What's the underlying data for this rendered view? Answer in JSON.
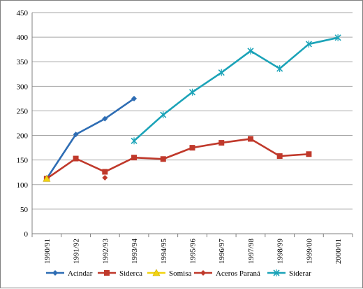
{
  "chart_data": {
    "type": "line",
    "title": "",
    "xlabel": "",
    "ylabel": "",
    "ylim": [
      0,
      450
    ],
    "yticks": [
      0,
      50,
      100,
      150,
      200,
      250,
      300,
      350,
      400,
      450
    ],
    "grid": "horizontal",
    "legend_position": "bottom",
    "categories": [
      "1990/91",
      "1991/92",
      "1992/93",
      "1993/94",
      "1994/95",
      "1995/96",
      "1996/97",
      "1997/98",
      "1998/99",
      "1999/00",
      "2000/01"
    ],
    "series": [
      {
        "name": "Acindar",
        "color": "#2E6DB4",
        "marker": "diamond",
        "values": [
          112,
          202,
          234,
          275,
          null,
          null,
          null,
          null,
          null,
          null,
          null
        ]
      },
      {
        "name": "Siderca",
        "color": "#C0392B",
        "marker": "square",
        "values": [
          112,
          153,
          126,
          155,
          152,
          175,
          185,
          193,
          158,
          162,
          null
        ]
      },
      {
        "name": "Somisa",
        "color": "#F2D30F",
        "marker": "triangle",
        "values": [
          112,
          null,
          null,
          null,
          null,
          null,
          null,
          null,
          null,
          null,
          null
        ]
      },
      {
        "name": "Aceros Paraná",
        "color": "#C0392B",
        "marker": "diamond",
        "values": [
          null,
          null,
          114,
          null,
          null,
          null,
          null,
          null,
          null,
          null,
          null
        ]
      },
      {
        "name": "Siderar",
        "color": "#1BA3B8",
        "marker": "x",
        "values": [
          null,
          null,
          null,
          189,
          242,
          288,
          328,
          372,
          336,
          386,
          399
        ]
      }
    ]
  }
}
